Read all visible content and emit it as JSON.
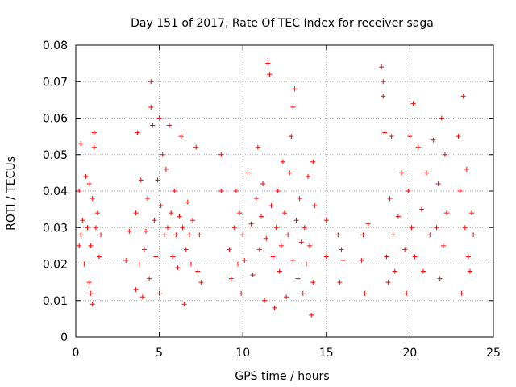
{
  "chart_data": {
    "type": "scatter",
    "title": "Day 151 of 2017, Rate Of TEC Index for receiver saga",
    "xlabel": "GPS time / hours",
    "ylabel": "ROTI / TECUs",
    "xlim": [
      0,
      25
    ],
    "ylim": [
      0,
      0.08
    ],
    "x_ticks": [
      "0",
      "5",
      "10",
      "15",
      "20",
      "25"
    ],
    "y_ticks": [
      "0",
      "0.01",
      "0.02",
      "0.03",
      "0.04",
      "0.05",
      "0.06",
      "0.07",
      "0.08"
    ],
    "grid": true,
    "marker": "plus",
    "series": [
      {
        "color": "#ff0000",
        "points": [
          [
            0.2,
            0.04
          ],
          [
            0.2,
            0.025
          ],
          [
            0.3,
            0.028
          ],
          [
            0.3,
            0.053
          ],
          [
            0.4,
            0.032
          ],
          [
            0.5,
            0.02
          ],
          [
            0.6,
            0.044
          ],
          [
            0.7,
            0.03
          ],
          [
            0.8,
            0.042
          ],
          [
            0.8,
            0.015
          ],
          [
            0.9,
            0.012
          ],
          [
            0.9,
            0.025
          ],
          [
            1.0,
            0.038
          ],
          [
            1.0,
            0.009
          ],
          [
            1.1,
            0.052
          ],
          [
            1.1,
            0.056
          ],
          [
            1.2,
            0.03
          ],
          [
            1.3,
            0.034
          ],
          [
            1.4,
            0.022
          ],
          [
            1.5,
            0.028
          ],
          [
            3.0,
            0.021
          ],
          [
            3.2,
            0.029
          ],
          [
            3.6,
            0.034
          ],
          [
            3.6,
            0.013
          ],
          [
            3.7,
            0.056
          ],
          [
            3.8,
            0.02
          ],
          [
            3.9,
            0.043
          ],
          [
            4.0,
            0.011
          ],
          [
            4.1,
            0.024
          ],
          [
            4.2,
            0.029
          ],
          [
            4.3,
            0.038
          ],
          [
            4.4,
            0.016
          ],
          [
            4.5,
            0.063
          ],
          [
            4.5,
            0.07
          ],
          [
            4.6,
            0.058
          ],
          [
            4.7,
            0.032
          ],
          [
            4.8,
            0.022
          ],
          [
            4.9,
            0.043
          ],
          [
            5.0,
            0.012
          ],
          [
            5.0,
            0.06
          ],
          [
            5.1,
            0.036
          ],
          [
            5.2,
            0.05
          ],
          [
            5.3,
            0.028
          ],
          [
            5.4,
            0.046
          ],
          [
            5.5,
            0.03
          ],
          [
            5.6,
            0.058
          ],
          [
            5.7,
            0.034
          ],
          [
            5.8,
            0.022
          ],
          [
            5.9,
            0.04
          ],
          [
            6.0,
            0.028
          ],
          [
            6.1,
            0.019
          ],
          [
            6.2,
            0.033
          ],
          [
            6.3,
            0.055
          ],
          [
            6.4,
            0.03
          ],
          [
            6.5,
            0.009
          ],
          [
            6.6,
            0.024
          ],
          [
            6.7,
            0.037
          ],
          [
            6.8,
            0.028
          ],
          [
            6.9,
            0.02
          ],
          [
            7.0,
            0.032
          ],
          [
            7.2,
            0.052
          ],
          [
            7.3,
            0.018
          ],
          [
            7.4,
            0.028
          ],
          [
            7.5,
            0.015
          ],
          [
            8.7,
            0.05
          ],
          [
            8.7,
            0.04
          ],
          [
            9.2,
            0.024
          ],
          [
            9.3,
            0.016
          ],
          [
            9.5,
            0.03
          ],
          [
            9.6,
            0.04
          ],
          [
            9.7,
            0.02
          ],
          [
            9.8,
            0.034
          ],
          [
            9.9,
            0.012
          ],
          [
            10.0,
            0.028
          ],
          [
            10.1,
            0.021
          ],
          [
            10.3,
            0.045
          ],
          [
            10.5,
            0.031
          ],
          [
            10.6,
            0.017
          ],
          [
            10.8,
            0.038
          ],
          [
            10.9,
            0.052
          ],
          [
            11.0,
            0.024
          ],
          [
            11.1,
            0.033
          ],
          [
            11.2,
            0.042
          ],
          [
            11.3,
            0.01
          ],
          [
            11.4,
            0.027
          ],
          [
            11.5,
            0.075
          ],
          [
            11.6,
            0.072
          ],
          [
            11.7,
            0.036
          ],
          [
            11.8,
            0.022
          ],
          [
            11.9,
            0.008
          ],
          [
            12.0,
            0.03
          ],
          [
            12.1,
            0.04
          ],
          [
            12.2,
            0.018
          ],
          [
            12.3,
            0.025
          ],
          [
            12.4,
            0.048
          ],
          [
            12.5,
            0.034
          ],
          [
            12.6,
            0.011
          ],
          [
            12.7,
            0.028
          ],
          [
            12.8,
            0.045
          ],
          [
            12.9,
            0.055
          ],
          [
            13.0,
            0.063
          ],
          [
            13.0,
            0.021
          ],
          [
            13.1,
            0.068
          ],
          [
            13.2,
            0.032
          ],
          [
            13.3,
            0.016
          ],
          [
            13.4,
            0.038
          ],
          [
            13.5,
            0.026
          ],
          [
            13.6,
            0.012
          ],
          [
            13.7,
            0.03
          ],
          [
            13.8,
            0.02
          ],
          [
            13.9,
            0.044
          ],
          [
            14.0,
            0.025
          ],
          [
            14.1,
            0.006
          ],
          [
            14.2,
            0.048
          ],
          [
            14.2,
            0.015
          ],
          [
            14.3,
            0.036
          ],
          [
            15.0,
            0.032
          ],
          [
            15.0,
            0.022
          ],
          [
            15.7,
            0.028
          ],
          [
            15.8,
            0.015
          ],
          [
            15.9,
            0.024
          ],
          [
            16.0,
            0.021
          ],
          [
            17.1,
            0.021
          ],
          [
            17.2,
            0.028
          ],
          [
            17.3,
            0.012
          ],
          [
            17.5,
            0.031
          ],
          [
            18.3,
            0.074
          ],
          [
            18.4,
            0.07
          ],
          [
            18.4,
            0.066
          ],
          [
            18.5,
            0.056
          ],
          [
            18.6,
            0.022
          ],
          [
            18.7,
            0.015
          ],
          [
            18.8,
            0.038
          ],
          [
            18.9,
            0.055
          ],
          [
            19.0,
            0.028
          ],
          [
            19.1,
            0.018
          ],
          [
            19.3,
            0.033
          ],
          [
            19.5,
            0.045
          ],
          [
            19.7,
            0.024
          ],
          [
            19.8,
            0.012
          ],
          [
            19.9,
            0.04
          ],
          [
            20.0,
            0.055
          ],
          [
            20.1,
            0.03
          ],
          [
            20.2,
            0.064
          ],
          [
            20.3,
            0.022
          ],
          [
            20.5,
            0.052
          ],
          [
            20.7,
            0.035
          ],
          [
            20.8,
            0.018
          ],
          [
            21.0,
            0.045
          ],
          [
            21.2,
            0.028
          ],
          [
            21.4,
            0.054
          ],
          [
            21.6,
            0.03
          ],
          [
            21.7,
            0.042
          ],
          [
            21.8,
            0.016
          ],
          [
            21.9,
            0.06
          ],
          [
            22.0,
            0.025
          ],
          [
            22.1,
            0.05
          ],
          [
            22.2,
            0.034
          ],
          [
            22.9,
            0.055
          ],
          [
            23.0,
            0.04
          ],
          [
            23.1,
            0.012
          ],
          [
            23.2,
            0.066
          ],
          [
            23.3,
            0.03
          ],
          [
            23.4,
            0.046
          ],
          [
            23.5,
            0.022
          ],
          [
            23.6,
            0.018
          ],
          [
            23.7,
            0.034
          ],
          [
            23.8,
            0.028
          ]
        ]
      }
    ]
  }
}
